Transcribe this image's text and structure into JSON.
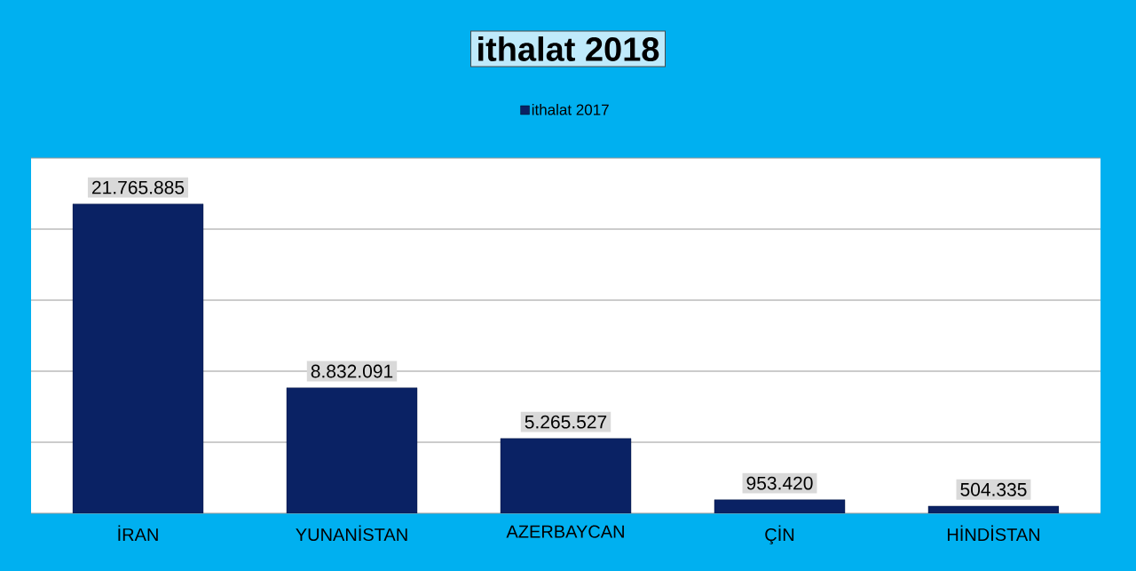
{
  "chart_data": {
    "type": "bar",
    "title": "ithalat 2018",
    "categories": [
      "İRAN",
      "YUNANİSTAN",
      "AZERBAYCAN",
      "ÇİN",
      "HİNDİSTAN"
    ],
    "series": [
      {
        "name": "ithalat 2017",
        "color": "#0a2264",
        "values": [
          21765885,
          8832091,
          5265527,
          953420,
          504335
        ],
        "value_labels": [
          "21.765.885",
          "8.832.091",
          "5.265.527",
          "953.420",
          "504.335"
        ]
      }
    ],
    "ylim": [
      0,
      25000000
    ],
    "yticks": [
      {
        "value": 0,
        "label": null
      },
      {
        "value": 5000000,
        "label": null
      },
      {
        "value": 10000000,
        "label": null
      },
      {
        "value": 15000000,
        "label": null
      },
      {
        "value": 20000000,
        "label": null
      },
      {
        "value": 25000000,
        "label": null
      }
    ],
    "grid": "y",
    "legend": "top",
    "tick_labels": "x"
  }
}
